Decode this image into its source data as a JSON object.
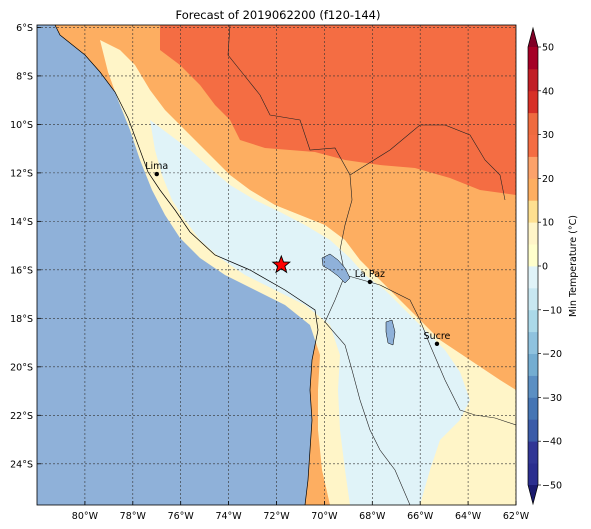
{
  "title": "Forecast of 2019062200 (f120-144)",
  "map": {
    "lon_range": [
      -82,
      -62
    ],
    "lat_range": [
      -25.7,
      -5.9
    ],
    "lon_ticks": [
      {
        "v": -80,
        "label": "80°W"
      },
      {
        "v": -78,
        "label": "78°W"
      },
      {
        "v": -76,
        "label": "76°W"
      },
      {
        "v": -74,
        "label": "74°W"
      },
      {
        "v": -72,
        "label": "72°W"
      },
      {
        "v": -70,
        "label": "70°W"
      },
      {
        "v": -68,
        "label": "68°W"
      },
      {
        "v": -66,
        "label": "66°W"
      },
      {
        "v": -64,
        "label": "64°W"
      },
      {
        "v": -62,
        "label": "62°W"
      }
    ],
    "lat_ticks": [
      {
        "v": -6,
        "label": "6°S"
      },
      {
        "v": -8,
        "label": "8°S"
      },
      {
        "v": -10,
        "label": "10°S"
      },
      {
        "v": -12,
        "label": "12°S"
      },
      {
        "v": -14,
        "label": "14°S"
      },
      {
        "v": -16,
        "label": "16°S"
      },
      {
        "v": -18,
        "label": "18°S"
      },
      {
        "v": -20,
        "label": "20°S"
      },
      {
        "v": -22,
        "label": "22°S"
      },
      {
        "v": -24,
        "label": "24°S"
      }
    ],
    "cities": [
      {
        "name": "Lima",
        "lon": -77.0,
        "lat": -12.05
      },
      {
        "name": "La Paz",
        "lon": -68.1,
        "lat": -16.5
      },
      {
        "name": "Sucre",
        "lon": -65.3,
        "lat": -19.05
      }
    ],
    "star": {
      "lon": -71.8,
      "lat": -15.8,
      "color": "#ff0000"
    },
    "ocean_color": "#8fb1d9"
  },
  "colorbar": {
    "label": "Min Temperature (°C)",
    "ticks": [
      {
        "v": 50,
        "label": "50"
      },
      {
        "v": 40,
        "label": "40"
      },
      {
        "v": 30,
        "label": "30"
      },
      {
        "v": 20,
        "label": "20"
      },
      {
        "v": 10,
        "label": "10"
      },
      {
        "v": 0,
        "label": "0"
      },
      {
        "v": -10,
        "label": "−10"
      },
      {
        "v": -20,
        "label": "−20"
      },
      {
        "v": -30,
        "label": "−30"
      },
      {
        "v": -40,
        "label": "−40"
      },
      {
        "v": -50,
        "label": "−50"
      }
    ],
    "bands": [
      {
        "from": -50,
        "to": -45,
        "color": "#2b2e8f"
      },
      {
        "from": -45,
        "to": -40,
        "color": "#313695"
      },
      {
        "from": -40,
        "to": -35,
        "color": "#3b5ba8"
      },
      {
        "from": -35,
        "to": -30,
        "color": "#4575b4"
      },
      {
        "from": -30,
        "to": -25,
        "color": "#5b8fc3"
      },
      {
        "from": -25,
        "to": -20,
        "color": "#74add1"
      },
      {
        "from": -20,
        "to": -15,
        "color": "#8fc2de"
      },
      {
        "from": -15,
        "to": -10,
        "color": "#abd9e9"
      },
      {
        "from": -10,
        "to": -5,
        "color": "#c8e7f1"
      },
      {
        "from": -5,
        "to": 0,
        "color": "#e0f3f8"
      },
      {
        "from": 0,
        "to": 5,
        "color": "#ffffcc"
      },
      {
        "from": 5,
        "to": 10,
        "color": "#fff5c8"
      },
      {
        "from": 10,
        "to": 15,
        "color": "#fee090"
      },
      {
        "from": 15,
        "to": 20,
        "color": "#fdae61"
      },
      {
        "from": 20,
        "to": 25,
        "color": "#fca26a"
      },
      {
        "from": 25,
        "to": 30,
        "color": "#f46d43"
      },
      {
        "from": 30,
        "to": 35,
        "color": "#ef6b3f"
      },
      {
        "from": 35,
        "to": 40,
        "color": "#d73027"
      },
      {
        "from": 40,
        "to": 45,
        "color": "#c11e26"
      },
      {
        "from": 45,
        "to": 50,
        "color": "#a50026"
      }
    ],
    "under_color": "#1a1a6e",
    "over_color": "#7f0026"
  }
}
